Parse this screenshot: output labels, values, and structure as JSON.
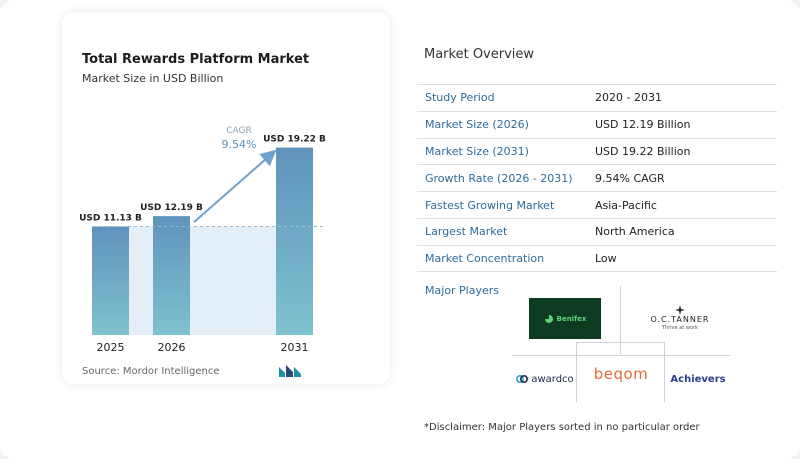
{
  "chart_data": {
    "type": "bar",
    "title": "Total Rewards Platform Market",
    "subtitle": "Market Size in USD Billion",
    "categories": [
      "2025",
      "2026",
      "2031"
    ],
    "values": [
      11.13,
      12.19,
      19.22
    ],
    "value_labels": [
      "USD 11.13 B",
      "USD 12.19 B",
      "USD 19.22 B"
    ],
    "ylim": [
      0,
      20
    ],
    "cagr_label": "CAGR",
    "cagr_value": "9.54%",
    "grid": false,
    "colors": {
      "bar_top": "#5f93bc",
      "bar_bottom": "#7fc2cf",
      "shade": "#e3eef6",
      "arrow": "#6fa0c9",
      "dashed": "#9fb8cc"
    }
  },
  "source": "Source: Mordor Intelligence",
  "source_logo_icon": "mordor-intelligence-logo-icon",
  "overview": {
    "title": "Market Overview",
    "rows": [
      {
        "label": "Study Period",
        "value": "2020 - 2031"
      },
      {
        "label": "Market Size (2026)",
        "value": "USD 12.19 Billion"
      },
      {
        "label": "Market Size (2031)",
        "value": "USD 19.22 Billion"
      },
      {
        "label": "Growth Rate (2026 - 2031)",
        "value": "9.54% CAGR"
      },
      {
        "label": "Fastest Growing Market",
        "value": "Asia-Pacific"
      },
      {
        "label": "Largest Market",
        "value": "North America"
      },
      {
        "label": "Market Concentration",
        "value": "Low"
      }
    ]
  },
  "players": {
    "title": "Major Players",
    "logos": [
      {
        "name": "Benifex",
        "icon": "benifex-logo-icon",
        "color": "#0c3b22"
      },
      {
        "name": "O.C.TANNER",
        "tagline": "Thrive at work",
        "icon": "oc-tanner-logo-icon"
      },
      {
        "name": "awardco",
        "icon": "awardco-logo-icon",
        "color": "#1c2a46"
      },
      {
        "name": "beqom",
        "color": "#e86a3a"
      },
      {
        "name": "Achievers",
        "color": "#2b3f88"
      }
    ]
  },
  "disclaimer": "*Disclaimer: Major Players sorted in no particular order"
}
